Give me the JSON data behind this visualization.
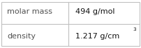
{
  "rows": [
    {
      "label": "molar mass",
      "value": "494 g/mol",
      "has_super": false
    },
    {
      "label": "density",
      "value": "1.217 g/cm",
      "superscript": "3",
      "has_super": true
    }
  ],
  "background_color": "#ffffff",
  "border_color": "#c0c0c0",
  "label_color": "#505050",
  "value_color": "#111111",
  "font_size": 8.0,
  "col_split": 0.485,
  "figwidth": 2.02,
  "figheight": 0.7,
  "dpi": 100
}
